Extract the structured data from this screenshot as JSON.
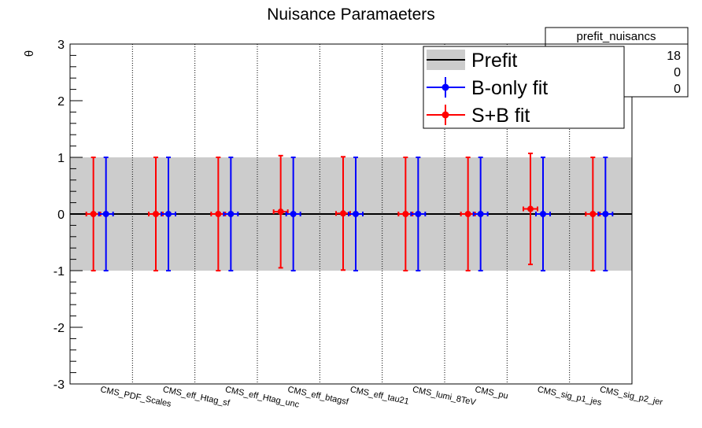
{
  "chart_data": {
    "type": "scatter",
    "title": "Nuisance Paramaeters",
    "xlabel": "",
    "ylabel": "θ",
    "ylim": [
      -3,
      3
    ],
    "yticks": [
      "-3",
      "-2",
      "-1",
      "0",
      "1",
      "2",
      "3"
    ],
    "categories": [
      "CMS_PDF_Scales",
      "CMS_eff_Htag_sf",
      "CMS_eff_Htag_unc",
      "CMS_eff_btagsf",
      "CMS_eff_tau21",
      "CMS_lumi_8TeV",
      "CMS_pu",
      "CMS_sig_p1_jes",
      "CMS_sig_p2_jer"
    ],
    "prefit_band": [
      -1,
      1
    ],
    "series": [
      {
        "name": "B-only fit",
        "color": "#0000ff",
        "values": [
          0,
          0,
          0,
          0,
          0,
          0,
          0,
          0,
          0
        ],
        "err_low": [
          1,
          1,
          1,
          1,
          1,
          1,
          1,
          1,
          1
        ],
        "err_high": [
          1,
          1,
          1,
          1,
          1,
          1,
          1,
          1,
          1
        ]
      },
      {
        "name": "S+B fit",
        "color": "#ff0000",
        "values": [
          0,
          0,
          0,
          0.04,
          0.01,
          0,
          0,
          0.09,
          0
        ],
        "err_low": [
          1,
          1,
          1,
          0.99,
          1,
          1,
          1,
          0.98,
          1
        ],
        "err_high": [
          1,
          1,
          1,
          0.99,
          1,
          1,
          1,
          0.98,
          1
        ]
      }
    ],
    "legend": {
      "placement": "top-right",
      "entries": [
        {
          "label": "Prefit",
          "style": "band"
        },
        {
          "label": "B-only fit",
          "style": "marker",
          "color": "#0000ff"
        },
        {
          "label": "S+B fit",
          "style": "marker",
          "color": "#ff0000"
        }
      ]
    },
    "stats_box": {
      "title": "prefit_nuisancs",
      "values": [
        "18",
        "0",
        "0"
      ]
    },
    "grid": "vertical dotted lines at category boundaries"
  }
}
